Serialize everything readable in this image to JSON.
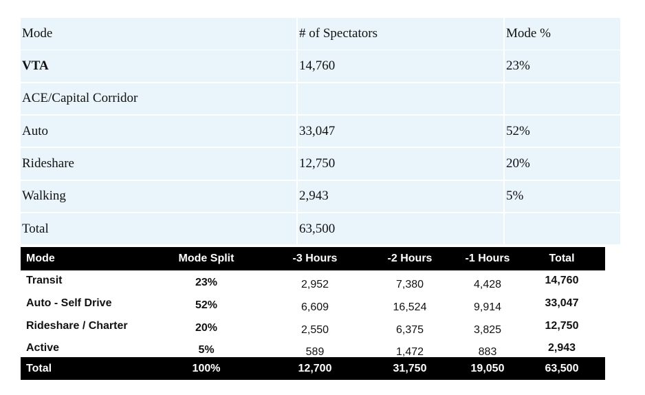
{
  "table1": {
    "header": [
      "Mode",
      "# of Spectators",
      "Mode %"
    ],
    "rows": [
      [
        "VTA",
        "14,760",
        "23%"
      ],
      [
        "ACE/Capital Corridor"
      ],
      [
        "Auto",
        "33,047",
        "52%"
      ],
      [
        "Rideshare",
        "12,750",
        "20%"
      ],
      [
        "Walking",
        "2,943",
        "5%"
      ],
      [
        "Total",
        "63,500"
      ]
    ]
  },
  "table2": {
    "header": [
      "Mode",
      "Mode Split",
      "-3 Hours",
      "-2 Hours",
      "-1 Hours",
      "Total"
    ],
    "rows": [
      [
        "Transit",
        "23%",
        "2,952",
        "7,380",
        "4,428",
        "14,760"
      ],
      [
        "Auto - Self Drive",
        "52%",
        "6,609",
        "16,524",
        "9,914",
        "33,047"
      ],
      [
        "Rideshare / Charter",
        "20%",
        "2,550",
        "6,375",
        "3,825",
        "12,750"
      ],
      [
        "Active",
        "5%",
        "589",
        "1,472",
        "883",
        "2,943"
      ]
    ],
    "total": [
      "Total",
      "100%",
      "12,700",
      "31,750",
      "19,050",
      "63,500"
    ]
  }
}
